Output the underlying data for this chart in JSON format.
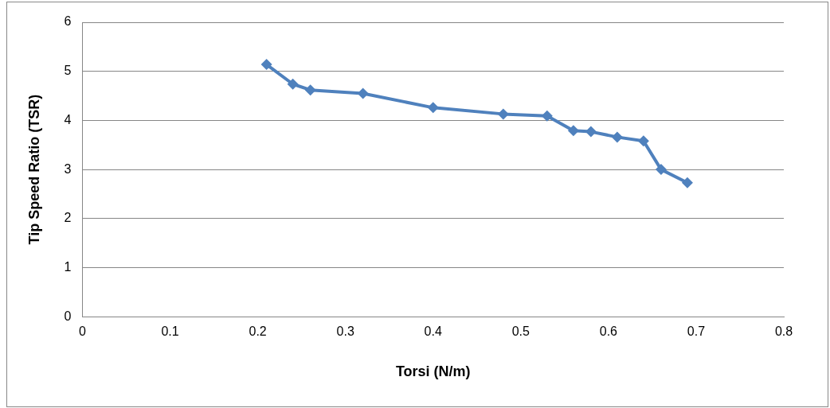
{
  "chart_data": {
    "type": "line",
    "xlabel": "Torsi (N/m)",
    "ylabel": "Tip Speed Ratio (TSR)",
    "x": [
      0.21,
      0.24,
      0.26,
      0.32,
      0.4,
      0.48,
      0.53,
      0.56,
      0.58,
      0.61,
      0.64,
      0.66,
      0.69
    ],
    "series": [
      {
        "color": "#4f81bd",
        "values": [
          5.14,
          4.74,
          4.62,
          4.55,
          4.26,
          4.13,
          4.09,
          3.79,
          3.77,
          3.66,
          3.58,
          3.0,
          2.73
        ]
      }
    ],
    "xlim": [
      0,
      0.8
    ],
    "xticks": [
      0,
      0.1,
      0.2,
      0.3,
      0.4,
      0.5,
      0.6,
      0.7,
      0.8
    ],
    "ylim": [
      0,
      6
    ],
    "yticks": [
      0,
      1,
      2,
      3,
      4,
      5,
      6
    ],
    "grid": "y",
    "marker": "diamond",
    "line_style": "solid",
    "legend": false
  }
}
